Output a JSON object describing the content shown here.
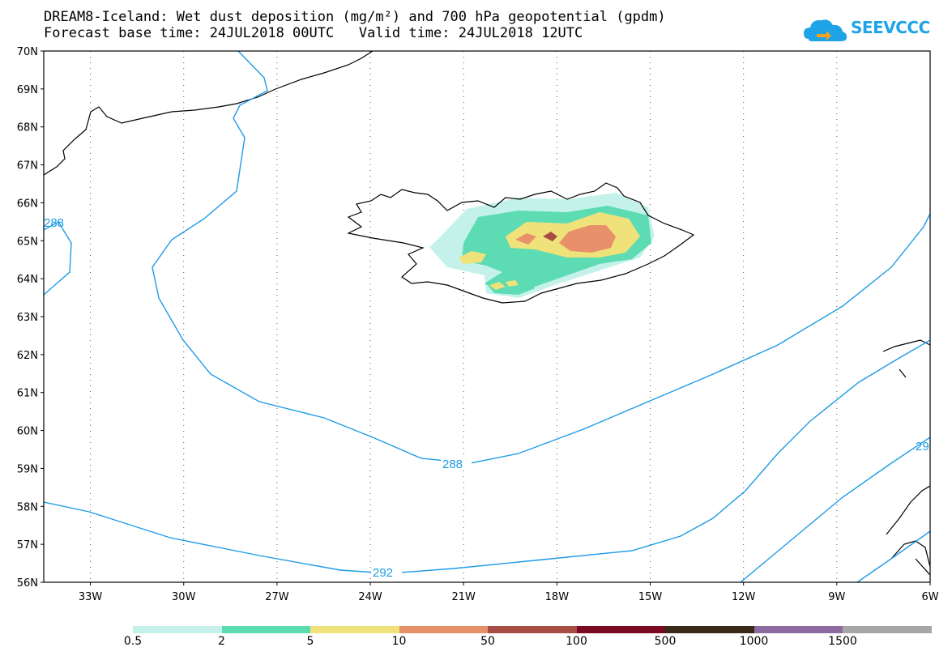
{
  "title": {
    "line1": "DREAM8-Iceland: Wet dust deposition (mg/m²) and 700 hPa geopotential (gpdm)",
    "line2": "Forecast base time: 24JUL2018 00UTC   Valid time: 24JUL2018 12UTC"
  },
  "logo": {
    "text": "SEEVCCC",
    "icon": "cloud-icon",
    "color": "#1ea3e6"
  },
  "map": {
    "region": "Iceland",
    "lon_range": [
      -34.5,
      -6
    ],
    "lat_range": [
      56,
      70
    ],
    "lat_ticks": [
      "56N",
      "57N",
      "58N",
      "59N",
      "60N",
      "61N",
      "62N",
      "63N",
      "64N",
      "65N",
      "66N",
      "67N",
      "68N",
      "69N",
      "70N"
    ],
    "lon_ticks": [
      "33W",
      "30W",
      "27W",
      "24W",
      "21W",
      "18W",
      "15W",
      "12W",
      "9W",
      "6W"
    ],
    "gridlines": "dotted",
    "contour_labels": [
      "288",
      "292",
      "288",
      "29"
    ],
    "contour_color": "#1e9be6"
  },
  "legend": {
    "labels": [
      "0.5",
      "2",
      "5",
      "10",
      "50",
      "100",
      "500",
      "1000",
      "1500"
    ],
    "colors": [
      "#c4f2ea",
      "#5ddcb4",
      "#f0e27a",
      "#e8906a",
      "#a84d44",
      "#7a0a22",
      "#3b2a1a",
      "#8d6aa0",
      "#a6a6a6"
    ]
  }
}
